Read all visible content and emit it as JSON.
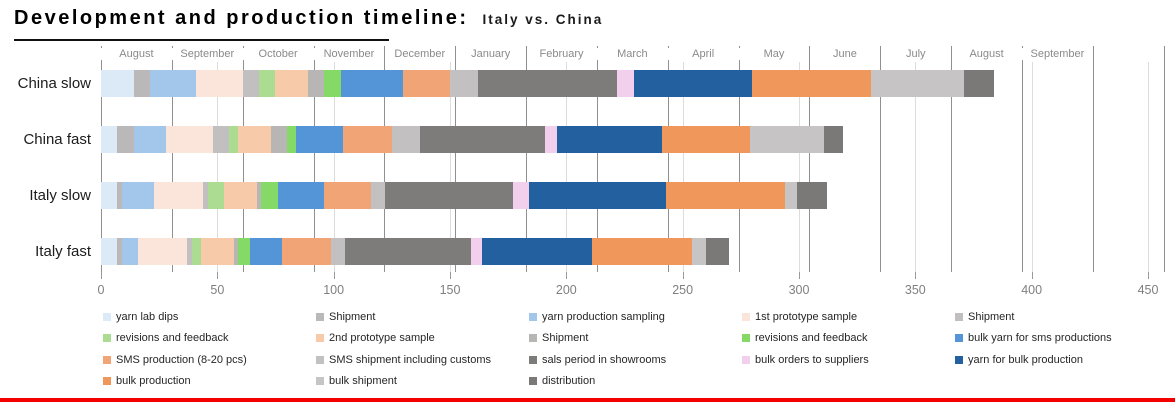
{
  "title": {
    "main": "Development and production timeline:",
    "sub": "Italy vs. China"
  },
  "accent": {
    "bottom_bar_color": "#f40000"
  },
  "chart_data": {
    "type": "bar",
    "subtype": "horizontal_stacked",
    "unit": "days",
    "months": [
      "August",
      "September",
      "October",
      "November",
      "December",
      "January",
      "February",
      "March",
      "April",
      "May",
      "June",
      "July",
      "August",
      "September"
    ],
    "x_axis": {
      "min": 0,
      "max": 450,
      "tick_step": 50,
      "ticks": [
        0,
        50,
        100,
        150,
        200,
        250,
        300,
        350,
        400,
        450
      ]
    },
    "grid": "on",
    "legend_position": "bottom",
    "series": [
      {
        "name": "yarn lab dips",
        "color": "#dce9f6"
      },
      {
        "name": "Shipment",
        "color": "#bab8b8"
      },
      {
        "name": "yarn production sampling",
        "color": "#a3c7eb"
      },
      {
        "name": "1st prototype sample",
        "color": "#fbe5da"
      },
      {
        "name": "Shipment",
        "color": "#c1bfbf"
      },
      {
        "name": "revisions and feedback",
        "color": "#abdc91"
      },
      {
        "name": "2nd prototype sample",
        "color": "#f7cba9"
      },
      {
        "name": "Shipment",
        "color": "#b8b5b5"
      },
      {
        "name": "revisions and feedback",
        "color": "#85d966"
      },
      {
        "name": "bulk yarn for sms productions",
        "color": "#5495d7"
      },
      {
        "name": "SMS production (8-20 pcs)",
        "color": "#f1a475"
      },
      {
        "name": "SMS shipment including customs",
        "color": "#c2c0c0"
      },
      {
        "name": "sals period in showrooms",
        "color": "#7e7b7b"
      },
      {
        "name": "bulk orders to suppliers",
        "color": "#f3cfee"
      },
      {
        "name": "yarn for bulk production",
        "color": "#23609f"
      },
      {
        "name": "bulk production",
        "color": "#f0975b"
      },
      {
        "name": "bulk shipment",
        "color": "#c6c4c4"
      },
      {
        "name": "distribution",
        "color": "#7b7878"
      }
    ],
    "rows": [
      {
        "label": "China slow",
        "values": [
          14,
          7,
          20,
          20,
          7,
          7,
          14,
          7,
          7,
          27,
          20,
          12,
          60,
          7,
          51,
          51,
          40,
          13
        ]
      },
      {
        "label": "China fast",
        "values": [
          7,
          7,
          14,
          20,
          7,
          4,
          14,
          7,
          4,
          20,
          21,
          12,
          54,
          5,
          45,
          38,
          32,
          8
        ]
      },
      {
        "label": "Italy slow",
        "values": [
          7,
          2,
          14,
          21,
          2,
          7,
          14,
          2,
          7,
          20,
          20,
          6,
          55,
          7,
          59,
          51,
          5,
          13
        ]
      },
      {
        "label": "Italy fast",
        "values": [
          7,
          2,
          7,
          21,
          2,
          4,
          14,
          2,
          5,
          14,
          21,
          6,
          54,
          5,
          47,
          43,
          6,
          10
        ]
      }
    ]
  }
}
